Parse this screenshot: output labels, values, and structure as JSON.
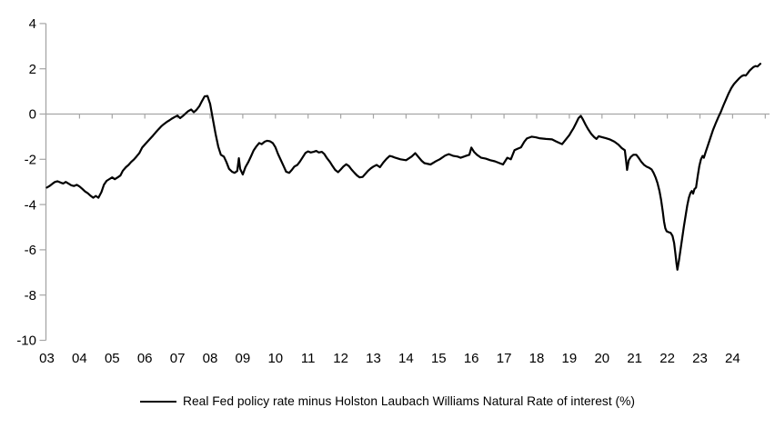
{
  "chart_data": {
    "type": "line",
    "legend": "Real Fed policy rate minus Holston Laubach Williams Natural Rate of interest (%)",
    "legend_position": "bottom-center",
    "line_color": "#000000",
    "axis_color": "#a6a6a6",
    "text_color": "#000000",
    "background_color": "#ffffff",
    "grid": "zero-line-only",
    "ylim": [
      -10,
      4
    ],
    "y_ticks": [
      4,
      2,
      0,
      -2,
      -4,
      -6,
      -8,
      -10
    ],
    "x_unit": "year",
    "x_range": [
      2003.0,
      2025.1
    ],
    "x_tick_labels": [
      "03",
      "04",
      "05",
      "06",
      "07",
      "08",
      "09",
      "10",
      "11",
      "12",
      "13",
      "14",
      "15",
      "16",
      "17",
      "18",
      "19",
      "20",
      "21",
      "22",
      "23",
      "24"
    ],
    "points": [
      [
        2003.0,
        -3.25
      ],
      [
        2003.08,
        -3.18
      ],
      [
        2003.17,
        -3.08
      ],
      [
        2003.25,
        -3.0
      ],
      [
        2003.33,
        -2.97
      ],
      [
        2003.42,
        -3.03
      ],
      [
        2003.5,
        -3.07
      ],
      [
        2003.58,
        -3.0
      ],
      [
        2003.67,
        -3.08
      ],
      [
        2003.75,
        -3.15
      ],
      [
        2003.83,
        -3.18
      ],
      [
        2003.92,
        -3.13
      ],
      [
        2004.0,
        -3.2
      ],
      [
        2004.08,
        -3.3
      ],
      [
        2004.17,
        -3.42
      ],
      [
        2004.25,
        -3.5
      ],
      [
        2004.33,
        -3.6
      ],
      [
        2004.42,
        -3.7
      ],
      [
        2004.5,
        -3.62
      ],
      [
        2004.58,
        -3.7
      ],
      [
        2004.67,
        -3.45
      ],
      [
        2004.75,
        -3.12
      ],
      [
        2004.83,
        -2.95
      ],
      [
        2004.92,
        -2.87
      ],
      [
        2005.0,
        -2.8
      ],
      [
        2005.08,
        -2.88
      ],
      [
        2005.17,
        -2.8
      ],
      [
        2005.25,
        -2.72
      ],
      [
        2005.33,
        -2.5
      ],
      [
        2005.42,
        -2.35
      ],
      [
        2005.5,
        -2.25
      ],
      [
        2005.58,
        -2.12
      ],
      [
        2005.67,
        -2.0
      ],
      [
        2005.75,
        -1.87
      ],
      [
        2005.83,
        -1.73
      ],
      [
        2005.92,
        -1.48
      ],
      [
        2006.0,
        -1.35
      ],
      [
        2006.08,
        -1.22
      ],
      [
        2006.17,
        -1.08
      ],
      [
        2006.25,
        -0.95
      ],
      [
        2006.33,
        -0.82
      ],
      [
        2006.42,
        -0.67
      ],
      [
        2006.5,
        -0.55
      ],
      [
        2006.58,
        -0.45
      ],
      [
        2006.67,
        -0.35
      ],
      [
        2006.75,
        -0.28
      ],
      [
        2006.83,
        -0.2
      ],
      [
        2006.92,
        -0.13
      ],
      [
        2007.0,
        -0.07
      ],
      [
        2007.08,
        -0.18
      ],
      [
        2007.17,
        -0.08
      ],
      [
        2007.25,
        0.03
      ],
      [
        2007.33,
        0.13
      ],
      [
        2007.42,
        0.2
      ],
      [
        2007.5,
        0.08
      ],
      [
        2007.58,
        0.18
      ],
      [
        2007.67,
        0.35
      ],
      [
        2007.75,
        0.57
      ],
      [
        2007.83,
        0.78
      ],
      [
        2007.92,
        0.8
      ],
      [
        2008.0,
        0.45
      ],
      [
        2008.08,
        -0.2
      ],
      [
        2008.17,
        -0.9
      ],
      [
        2008.25,
        -1.45
      ],
      [
        2008.33,
        -1.8
      ],
      [
        2008.42,
        -1.88
      ],
      [
        2008.5,
        -2.12
      ],
      [
        2008.58,
        -2.42
      ],
      [
        2008.67,
        -2.55
      ],
      [
        2008.75,
        -2.6
      ],
      [
        2008.83,
        -2.52
      ],
      [
        2008.88,
        -1.95
      ],
      [
        2008.92,
        -2.42
      ],
      [
        2009.0,
        -2.67
      ],
      [
        2009.08,
        -2.35
      ],
      [
        2009.17,
        -2.12
      ],
      [
        2009.25,
        -1.87
      ],
      [
        2009.33,
        -1.62
      ],
      [
        2009.42,
        -1.42
      ],
      [
        2009.5,
        -1.28
      ],
      [
        2009.58,
        -1.33
      ],
      [
        2009.67,
        -1.22
      ],
      [
        2009.75,
        -1.18
      ],
      [
        2009.83,
        -1.2
      ],
      [
        2009.92,
        -1.28
      ],
      [
        2010.0,
        -1.47
      ],
      [
        2010.08,
        -1.77
      ],
      [
        2010.17,
        -2.05
      ],
      [
        2010.25,
        -2.3
      ],
      [
        2010.33,
        -2.55
      ],
      [
        2010.42,
        -2.6
      ],
      [
        2010.5,
        -2.47
      ],
      [
        2010.58,
        -2.32
      ],
      [
        2010.67,
        -2.25
      ],
      [
        2010.75,
        -2.1
      ],
      [
        2010.83,
        -1.92
      ],
      [
        2010.92,
        -1.72
      ],
      [
        2011.0,
        -1.65
      ],
      [
        2011.08,
        -1.7
      ],
      [
        2011.17,
        -1.67
      ],
      [
        2011.25,
        -1.63
      ],
      [
        2011.33,
        -1.7
      ],
      [
        2011.42,
        -1.67
      ],
      [
        2011.5,
        -1.77
      ],
      [
        2011.58,
        -1.95
      ],
      [
        2011.67,
        -2.12
      ],
      [
        2011.75,
        -2.3
      ],
      [
        2011.83,
        -2.47
      ],
      [
        2011.92,
        -2.57
      ],
      [
        2012.0,
        -2.45
      ],
      [
        2012.08,
        -2.32
      ],
      [
        2012.17,
        -2.22
      ],
      [
        2012.25,
        -2.3
      ],
      [
        2012.33,
        -2.45
      ],
      [
        2012.42,
        -2.6
      ],
      [
        2012.5,
        -2.72
      ],
      [
        2012.58,
        -2.8
      ],
      [
        2012.67,
        -2.78
      ],
      [
        2012.75,
        -2.65
      ],
      [
        2012.83,
        -2.52
      ],
      [
        2012.92,
        -2.4
      ],
      [
        2013.0,
        -2.32
      ],
      [
        2013.1,
        -2.25
      ],
      [
        2013.2,
        -2.35
      ],
      [
        2013.3,
        -2.15
      ],
      [
        2013.4,
        -1.98
      ],
      [
        2013.5,
        -1.85
      ],
      [
        2013.58,
        -1.88
      ],
      [
        2013.67,
        -1.93
      ],
      [
        2013.83,
        -2.0
      ],
      [
        2014.0,
        -2.04
      ],
      [
        2014.17,
        -1.88
      ],
      [
        2014.28,
        -1.73
      ],
      [
        2014.48,
        -2.07
      ],
      [
        2014.56,
        -2.17
      ],
      [
        2014.75,
        -2.23
      ],
      [
        2014.92,
        -2.08
      ],
      [
        2015.03,
        -2.0
      ],
      [
        2015.2,
        -1.83
      ],
      [
        2015.31,
        -1.77
      ],
      [
        2015.45,
        -1.85
      ],
      [
        2015.58,
        -1.88
      ],
      [
        2015.67,
        -1.93
      ],
      [
        2015.83,
        -1.85
      ],
      [
        2015.94,
        -1.8
      ],
      [
        2016.0,
        -1.48
      ],
      [
        2016.08,
        -1.67
      ],
      [
        2016.17,
        -1.8
      ],
      [
        2016.3,
        -1.93
      ],
      [
        2016.44,
        -1.97
      ],
      [
        2016.58,
        -2.04
      ],
      [
        2016.72,
        -2.09
      ],
      [
        2016.86,
        -2.17
      ],
      [
        2016.97,
        -2.23
      ],
      [
        2017.1,
        -1.93
      ],
      [
        2017.21,
        -2.0
      ],
      [
        2017.32,
        -1.6
      ],
      [
        2017.42,
        -1.53
      ],
      [
        2017.52,
        -1.47
      ],
      [
        2017.62,
        -1.22
      ],
      [
        2017.7,
        -1.08
      ],
      [
        2017.85,
        -1.0
      ],
      [
        2017.97,
        -1.03
      ],
      [
        2018.08,
        -1.07
      ],
      [
        2018.28,
        -1.1
      ],
      [
        2018.47,
        -1.12
      ],
      [
        2018.58,
        -1.2
      ],
      [
        2018.7,
        -1.28
      ],
      [
        2018.78,
        -1.33
      ],
      [
        2018.89,
        -1.13
      ],
      [
        2019.0,
        -0.93
      ],
      [
        2019.06,
        -0.78
      ],
      [
        2019.13,
        -0.62
      ],
      [
        2019.2,
        -0.42
      ],
      [
        2019.28,
        -0.18
      ],
      [
        2019.35,
        -0.08
      ],
      [
        2019.42,
        -0.25
      ],
      [
        2019.5,
        -0.48
      ],
      [
        2019.58,
        -0.68
      ],
      [
        2019.67,
        -0.88
      ],
      [
        2019.76,
        -1.02
      ],
      [
        2019.83,
        -1.1
      ],
      [
        2019.9,
        -0.98
      ],
      [
        2020.0,
        -1.02
      ],
      [
        2020.12,
        -1.07
      ],
      [
        2020.25,
        -1.13
      ],
      [
        2020.38,
        -1.22
      ],
      [
        2020.5,
        -1.35
      ],
      [
        2020.6,
        -1.5
      ],
      [
        2020.7,
        -1.6
      ],
      [
        2020.74,
        -2.1
      ],
      [
        2020.77,
        -2.47
      ],
      [
        2020.82,
        -2.05
      ],
      [
        2020.88,
        -1.9
      ],
      [
        2020.96,
        -1.8
      ],
      [
        2021.05,
        -1.8
      ],
      [
        2021.13,
        -1.95
      ],
      [
        2021.21,
        -2.12
      ],
      [
        2021.29,
        -2.25
      ],
      [
        2021.37,
        -2.33
      ],
      [
        2021.45,
        -2.38
      ],
      [
        2021.52,
        -2.45
      ],
      [
        2021.58,
        -2.6
      ],
      [
        2021.64,
        -2.8
      ],
      [
        2021.7,
        -3.05
      ],
      [
        2021.76,
        -3.4
      ],
      [
        2021.81,
        -3.8
      ],
      [
        2021.86,
        -4.3
      ],
      [
        2021.9,
        -4.75
      ],
      [
        2021.94,
        -5.05
      ],
      [
        2021.98,
        -5.18
      ],
      [
        2022.04,
        -5.22
      ],
      [
        2022.1,
        -5.25
      ],
      [
        2022.16,
        -5.38
      ],
      [
        2022.21,
        -5.7
      ],
      [
        2022.25,
        -6.2
      ],
      [
        2022.28,
        -6.6
      ],
      [
        2022.31,
        -6.88
      ],
      [
        2022.36,
        -6.45
      ],
      [
        2022.41,
        -5.95
      ],
      [
        2022.46,
        -5.45
      ],
      [
        2022.51,
        -4.95
      ],
      [
        2022.56,
        -4.5
      ],
      [
        2022.61,
        -4.05
      ],
      [
        2022.66,
        -3.7
      ],
      [
        2022.71,
        -3.48
      ],
      [
        2022.75,
        -3.4
      ],
      [
        2022.79,
        -3.52
      ],
      [
        2022.83,
        -3.32
      ],
      [
        2022.88,
        -3.25
      ],
      [
        2022.93,
        -2.75
      ],
      [
        2022.98,
        -2.3
      ],
      [
        2023.03,
        -2.0
      ],
      [
        2023.08,
        -1.85
      ],
      [
        2023.12,
        -1.93
      ],
      [
        2023.17,
        -1.7
      ],
      [
        2023.24,
        -1.4
      ],
      [
        2023.32,
        -1.05
      ],
      [
        2023.4,
        -0.7
      ],
      [
        2023.48,
        -0.42
      ],
      [
        2023.56,
        -0.15
      ],
      [
        2023.64,
        0.1
      ],
      [
        2023.72,
        0.38
      ],
      [
        2023.8,
        0.65
      ],
      [
        2023.88,
        0.92
      ],
      [
        2023.96,
        1.15
      ],
      [
        2024.04,
        1.32
      ],
      [
        2024.12,
        1.45
      ],
      [
        2024.2,
        1.58
      ],
      [
        2024.28,
        1.68
      ],
      [
        2024.35,
        1.72
      ],
      [
        2024.4,
        1.7
      ],
      [
        2024.46,
        1.8
      ],
      [
        2024.52,
        1.92
      ],
      [
        2024.58,
        2.0
      ],
      [
        2024.64,
        2.08
      ],
      [
        2024.7,
        2.12
      ],
      [
        2024.76,
        2.1
      ],
      [
        2024.81,
        2.17
      ],
      [
        2024.85,
        2.22
      ]
    ]
  }
}
